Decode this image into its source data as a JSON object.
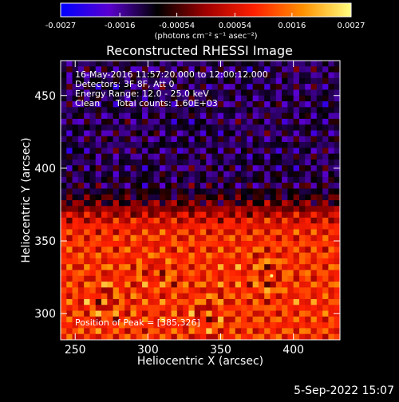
{
  "chart_data": {
    "type": "heatmap",
    "title": "Reconstructed RHESSI Image",
    "xlabel": "Heliocentric X (arcsec)",
    "ylabel": "Heliocentric Y (arcsec)",
    "xlim": [
      240,
      432
    ],
    "ylim": [
      282,
      474
    ],
    "x_ticks": [
      250,
      300,
      350,
      400
    ],
    "y_ticks": [
      300,
      350,
      400,
      450
    ],
    "grid": false,
    "colorbar": {
      "position": "top",
      "range": [
        -0.0027,
        0.0027
      ],
      "tick_values": [
        -0.0027,
        -0.0016,
        -0.00054,
        0.00054,
        0.0016,
        0.0027
      ],
      "tick_labels": [
        "-0.0027",
        "-0.0016",
        "-0.00054",
        "0.00054",
        "0.0016",
        "0.0027"
      ],
      "units_label": "(photons cm⁻² s⁻¹ asec⁻²)",
      "colormap": [
        "#0000ff",
        "#5a00d0",
        "#000000",
        "#a00000",
        "#ff2000",
        "#ff9000",
        "#ffff80"
      ]
    },
    "annotations": {
      "time_range": "16-May-2016 11:57:20.000 to 12:00:12.000",
      "detectors": "Detectors: 3F 8F, Att 0",
      "energy_range": "Energy Range: 12.0 - 25.0 keV",
      "method": "Clean",
      "total_counts": "Total counts: 1.60E+03",
      "peak": "Position of Peak = [385,326]"
    },
    "peak_position": [
      385,
      326
    ],
    "grid_size": 48,
    "field": {
      "background_level": -0.0012,
      "source_level": 0.0018,
      "transition_y": 372,
      "ripple_period_arcsec": 13,
      "peaks_arcsec": [
        [
          385,
          326
        ],
        [
          305,
          330
        ],
        [
          270,
          310
        ],
        [
          340,
          300
        ]
      ]
    }
  },
  "footer": {
    "date": "5-Sep-2022 15:07"
  }
}
